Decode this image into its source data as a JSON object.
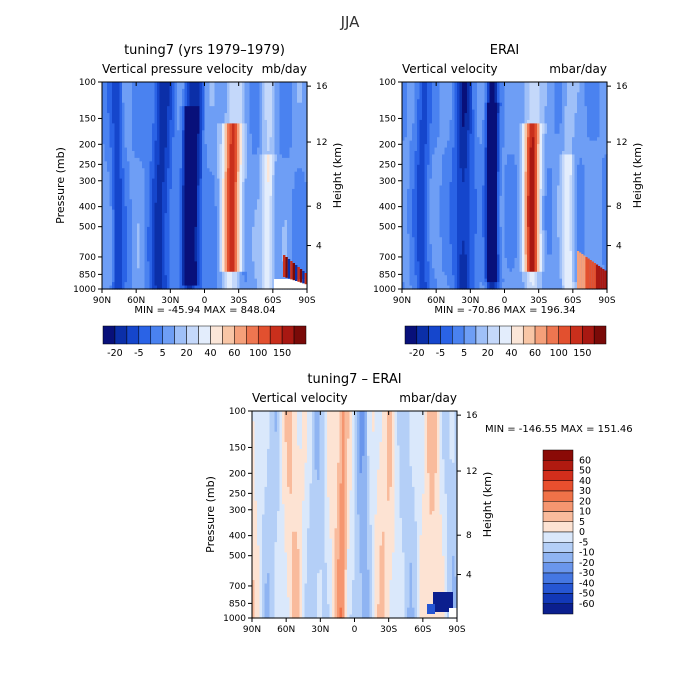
{
  "figure_title": "JJA",
  "chart_data": [
    {
      "id": "p1",
      "type": "contourf",
      "title": "tuning7 (yrs 1979–1979)",
      "left_label": "Vertical pressure velocity",
      "right_label": "mb/day",
      "ylabel": "Pressure (mb)",
      "ylabel_right": "Height (km)",
      "x_ticks": [
        "90N",
        "60N",
        "30N",
        "0",
        "30S",
        "60S",
        "90S"
      ],
      "y_ticks": [
        100,
        150,
        200,
        250,
        300,
        400,
        500,
        700,
        850,
        1000
      ],
      "y_ticks_right": [
        16,
        12,
        8,
        4
      ],
      "min_label": "MIN = -45.94",
      "max_label": "MAX = 848.04",
      "colorbar_orientation": "horizontal",
      "colorbar_labels": [
        "-20",
        "-5",
        "5",
        "20",
        "40",
        "60",
        "100",
        "150"
      ],
      "colorbar_colors": [
        "#08107a",
        "#0b2fa8",
        "#1546cc",
        "#2a63e6",
        "#4a82f0",
        "#6e9ef5",
        "#9fc0f8",
        "#c4d8fa",
        "#e3edfc",
        "#fbe6d8",
        "#f8c6a6",
        "#f5a07a",
        "#ee7650",
        "#e2502f",
        "#c92f1c",
        "#a81812",
        "#7a0a08"
      ],
      "field": "p1"
    },
    {
      "id": "p2",
      "type": "contourf",
      "title": "ERAI",
      "left_label": "Vertical velocity",
      "right_label": "mbar/day",
      "ylabel_right": "Height (km)",
      "x_ticks": [
        "90N",
        "60N",
        "30N",
        "0",
        "30S",
        "60S",
        "90S"
      ],
      "y_ticks": [
        100,
        150,
        200,
        250,
        300,
        400,
        500,
        700,
        850,
        1000
      ],
      "y_ticks_right": [
        16,
        12,
        8,
        4
      ],
      "min_label": "MIN = -70.86",
      "max_label": "MAX = 196.34",
      "colorbar_orientation": "horizontal",
      "colorbar_labels": [
        "-20",
        "-5",
        "5",
        "20",
        "40",
        "60",
        "100",
        "150"
      ],
      "colorbar_colors": [
        "#08107a",
        "#0b2fa8",
        "#1546cc",
        "#2a63e6",
        "#4a82f0",
        "#6e9ef5",
        "#9fc0f8",
        "#c4d8fa",
        "#e3edfc",
        "#fbe6d8",
        "#f8c6a6",
        "#f5a07a",
        "#ee7650",
        "#e2502f",
        "#c92f1c",
        "#a81812",
        "#7a0a08"
      ],
      "field": "p2"
    },
    {
      "id": "p3",
      "type": "contourf",
      "title": "tuning7 – ERAI",
      "left_label": "Vertical velocity",
      "right_label": "mbar/day",
      "ylabel": "Pressure (mb)",
      "ylabel_right": "Height (km)",
      "x_ticks": [
        "90N",
        "60N",
        "30N",
        "0",
        "30S",
        "60S",
        "90S"
      ],
      "y_ticks": [
        100,
        150,
        200,
        250,
        300,
        400,
        500,
        700,
        850,
        1000
      ],
      "y_ticks_right": [
        16,
        12,
        8,
        4
      ],
      "min_label": "MIN = -146.55",
      "max_label": "MAX = 151.46",
      "colorbar_orientation": "vertical",
      "colorbar_labels": [
        "60",
        "50",
        "40",
        "30",
        "20",
        "10",
        "5",
        "0",
        "-5",
        "-10",
        "-20",
        "-30",
        "-40",
        "-50",
        "-60"
      ],
      "colorbar_colors": [
        "#8a0a06",
        "#b01a10",
        "#d22e1c",
        "#e84f2e",
        "#f07248",
        "#f59670",
        "#f9bb9c",
        "#fde3d3",
        "#dae8fb",
        "#b4cff7",
        "#8fb4f2",
        "#6a96ec",
        "#4577e2",
        "#2656d3",
        "#1238b7",
        "#0b1f8e"
      ],
      "field": "p3"
    }
  ]
}
